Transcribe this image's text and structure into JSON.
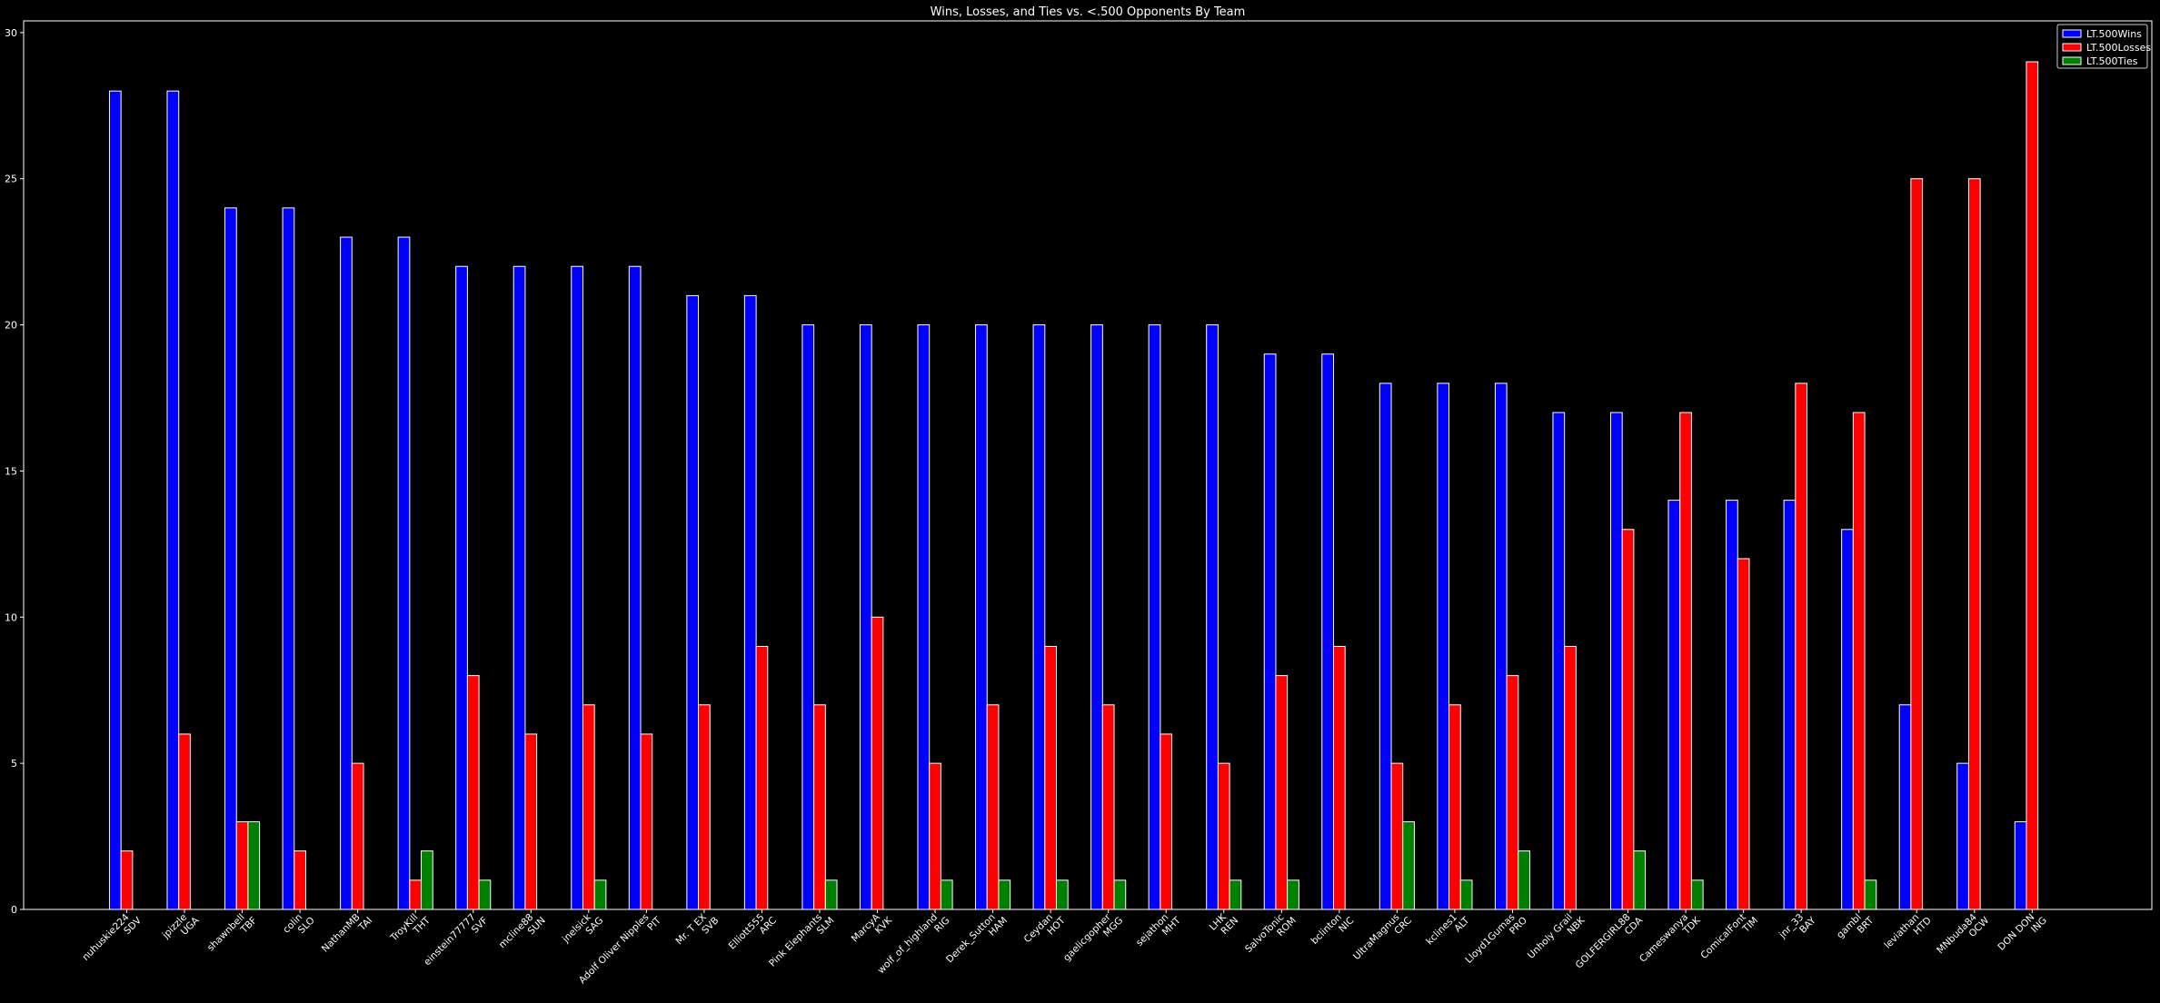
{
  "chart_data": {
    "type": "bar",
    "title": "Wins, Losses, and Ties vs. <.500 Opponents By Team",
    "xlabel": "",
    "ylabel": "",
    "ylim": [
      0,
      30.4
    ],
    "yticks": [
      0,
      5,
      10,
      15,
      20,
      25,
      30
    ],
    "grid": false,
    "legend_position": "top-right",
    "categories": [
      "nuhuskie224\nSDV",
      "jpizzle\nUGA",
      "shawnbell\nTBF",
      "colin\nSLO",
      "NathanMB\nTAI",
      "TroyKill\nTHT",
      "einstein77777\nSVF",
      "mcline88\nSUN",
      "jnelsick\nSAG",
      "Adolf Oliver Nipples\nPIT",
      "Mr. T EX\nSVB",
      "Elliott555\nARC",
      "Pink Elephants\nSLM",
      "MarcyA\nKVK",
      "wolf_of_highland\nRIG",
      "Derek_Sutton\nHAM",
      "Ceydan\nHOT",
      "gaelicgopher\nMGG",
      "sejathon\nMHT",
      "LHK\nREN",
      "SalvoTonic\nROM",
      "bclinton\nNIC",
      "UltraMagnus\nCRC",
      "kclines1\nALT",
      "Lloyd1Gumas\nPRO",
      "Unholy Grail\nNBK",
      "GOLFERGIRL88\nCDA",
      "Cameswanya\nTDK",
      "ComicalFont\nTIM",
      "jnr_33\nBAY",
      "gambl\nBRT",
      "leviathan\nHTD",
      "MNbuda84\nOCW",
      "DON DON\nING"
    ],
    "series": [
      {
        "name": "LT.500Wins",
        "color": "#0000ff",
        "values": [
          28,
          28,
          24,
          24,
          23,
          23,
          22,
          22,
          22,
          22,
          21,
          21,
          20,
          20,
          20,
          20,
          20,
          20,
          20,
          20,
          19,
          19,
          18,
          18,
          18,
          17,
          17,
          14,
          14,
          14,
          13,
          7,
          5,
          3
        ]
      },
      {
        "name": "LT.500Losses",
        "color": "#ff0000",
        "values": [
          2,
          6,
          3,
          2,
          5,
          1,
          8,
          6,
          7,
          6,
          7,
          9,
          7,
          10,
          5,
          7,
          9,
          7,
          6,
          5,
          8,
          9,
          5,
          7,
          8,
          9,
          13,
          17,
          12,
          18,
          17,
          25,
          25,
          29
        ]
      },
      {
        "name": "LT.500Ties",
        "color": "#008000",
        "values": [
          0,
          0,
          3,
          0,
          0,
          2,
          1,
          0,
          1,
          0,
          0,
          0,
          1,
          0,
          1,
          1,
          1,
          1,
          0,
          1,
          1,
          0,
          3,
          1,
          2,
          0,
          2,
          1,
          0,
          0,
          1,
          0,
          0,
          0
        ]
      }
    ]
  }
}
